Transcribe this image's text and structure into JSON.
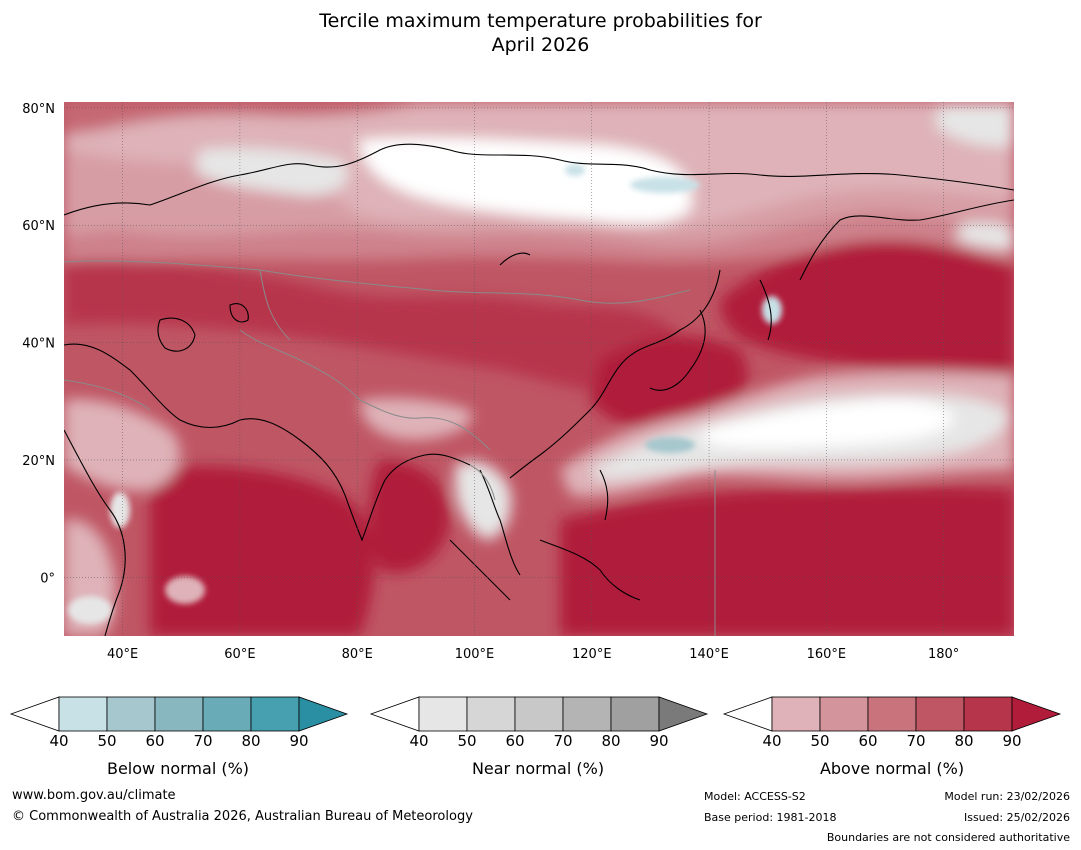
{
  "title_line1": "Tercile maximum temperature probabilities for",
  "title_line2": "April 2026",
  "map": {
    "lat_labels": [
      {
        "lat": 80,
        "text": "80°N"
      },
      {
        "lat": 60,
        "text": "60°N"
      },
      {
        "lat": 40,
        "text": "40°N"
      },
      {
        "lat": 20,
        "text": "20°N"
      },
      {
        "lat": 0,
        "text": "0°"
      }
    ],
    "lon_labels": [
      {
        "lon": 40,
        "text": "40°E"
      },
      {
        "lon": 60,
        "text": "60°E"
      },
      {
        "lon": 80,
        "text": "80°E"
      },
      {
        "lon": 100,
        "text": "100°E"
      },
      {
        "lon": 120,
        "text": "120°E"
      },
      {
        "lon": 140,
        "text": "140°E"
      },
      {
        "lon": 160,
        "text": "160°E"
      },
      {
        "lon": 180,
        "text": "180°"
      }
    ],
    "lon_range": [
      30,
      192
    ],
    "lat_range": [
      -10,
      81
    ]
  },
  "legend": {
    "ticks": [
      "40",
      "50",
      "60",
      "70",
      "80",
      "90"
    ],
    "below": {
      "label": "Below normal (%)",
      "colors": [
        "#c7e1e7",
        "#a5c7cd",
        "#88b7bf",
        "#6aabb8",
        "#47a0b0",
        "#2b8fa3"
      ]
    },
    "near": {
      "label": "Near normal (%)",
      "colors": [
        "#e6e6e6",
        "#d6d6d6",
        "#c8c8c8",
        "#b4b4b4",
        "#a0a0a0",
        "#7a7a7a"
      ]
    },
    "above": {
      "label": "Above normal (%)",
      "colors": [
        "#deb2b8",
        "#d4949b",
        "#c9747d",
        "#bf5664",
        "#b7354b",
        "#b01c3a"
      ]
    }
  },
  "footer": {
    "website": "www.bom.gov.au/climate",
    "copyright": "© Commonwealth of Australia 2026, Australian Bureau of Meteorology",
    "model": "Model: ACCESS-S2",
    "base_period": "Base period: 1981-2018",
    "model_run": "Model run: 23/02/2026",
    "issued": "Issued: 25/02/2026",
    "boundaries_note": "Boundaries are not considered authoritative"
  }
}
